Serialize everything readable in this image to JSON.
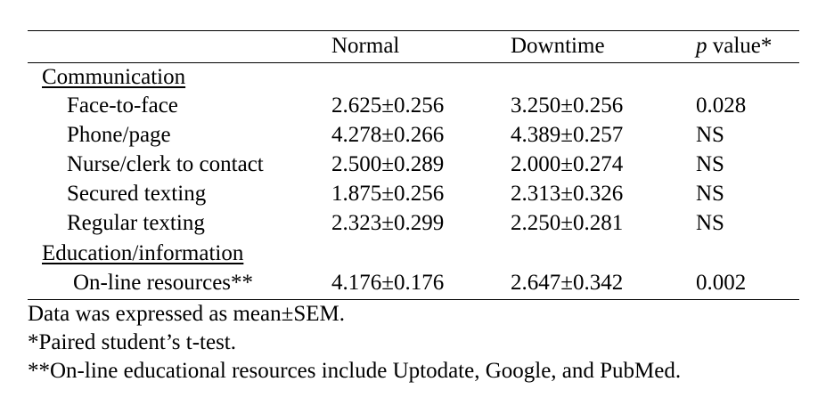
{
  "header": {
    "col_normal": "Normal",
    "col_downtime": "Downtime",
    "col_p_italic": "p",
    "col_p_rest": " value*"
  },
  "sections": [
    {
      "title": "Communication",
      "rows": [
        {
          "label": "Face-to-face",
          "normal": "2.625±0.256",
          "downtime": "3.250±0.256",
          "p": "0.028"
        },
        {
          "label": "Phone/page",
          "normal": "4.278±0.266",
          "downtime": "4.389±0.257",
          "p": "NS"
        },
        {
          "label": "Nurse/clerk to contact",
          "normal": "2.500±0.289",
          "downtime": "2.000±0.274",
          "p": "NS"
        },
        {
          "label": "Secured texting",
          "normal": "1.875±0.256",
          "downtime": "2.313±0.326",
          "p": "NS"
        },
        {
          "label": "Regular texting",
          "normal": "2.323±0.299",
          "downtime": "2.250±0.281",
          "p": "NS"
        }
      ]
    },
    {
      "title": "Education/information",
      "rows": [
        {
          "label": "On-line resources**",
          "normal": "4.176±0.176",
          "downtime": "2.647±0.342",
          "p": "0.002"
        }
      ]
    }
  ],
  "footnotes": [
    "Data was expressed as mean±SEM.",
    "*Paired student’s t-test.",
    "**On-line educational resources include Uptodate, Google, and PubMed."
  ]
}
